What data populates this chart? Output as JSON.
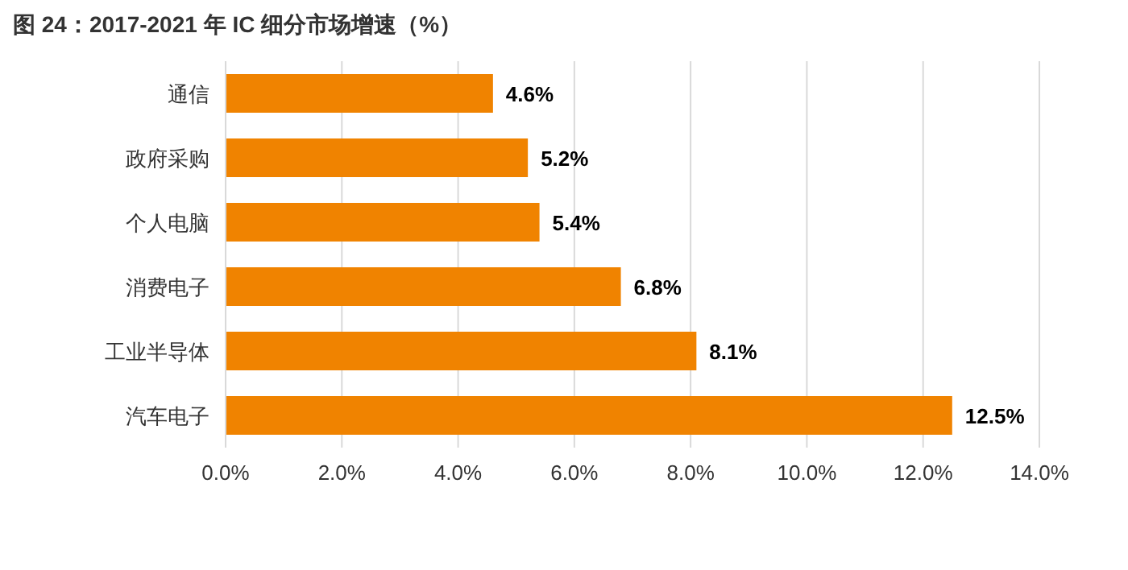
{
  "chart_data": {
    "type": "bar",
    "orientation": "horizontal",
    "title": "图 24：2017-2021 年 IC 细分市场增速（%）",
    "categories": [
      "通信",
      "政府采购",
      "个人电脑",
      "消费电子",
      "工业半导体",
      "汽车电子"
    ],
    "values": [
      4.6,
      5.2,
      5.4,
      6.8,
      8.1,
      12.5
    ],
    "value_labels": [
      "4.6%",
      "5.2%",
      "5.4%",
      "6.8%",
      "8.1%",
      "12.5%"
    ],
    "color": "#f08300",
    "xlim": [
      0,
      14
    ],
    "xticks": [
      {
        "value": 0,
        "label": "0.0%"
      },
      {
        "value": 2,
        "label": "2.0%"
      },
      {
        "value": 4,
        "label": "4.0%"
      },
      {
        "value": 6,
        "label": "6.0%"
      },
      {
        "value": 8,
        "label": "8.0%"
      },
      {
        "value": 10,
        "label": "10.0%"
      },
      {
        "value": 12,
        "label": "12.0%"
      },
      {
        "value": 14,
        "label": "14.0%"
      }
    ],
    "grid": "x"
  }
}
